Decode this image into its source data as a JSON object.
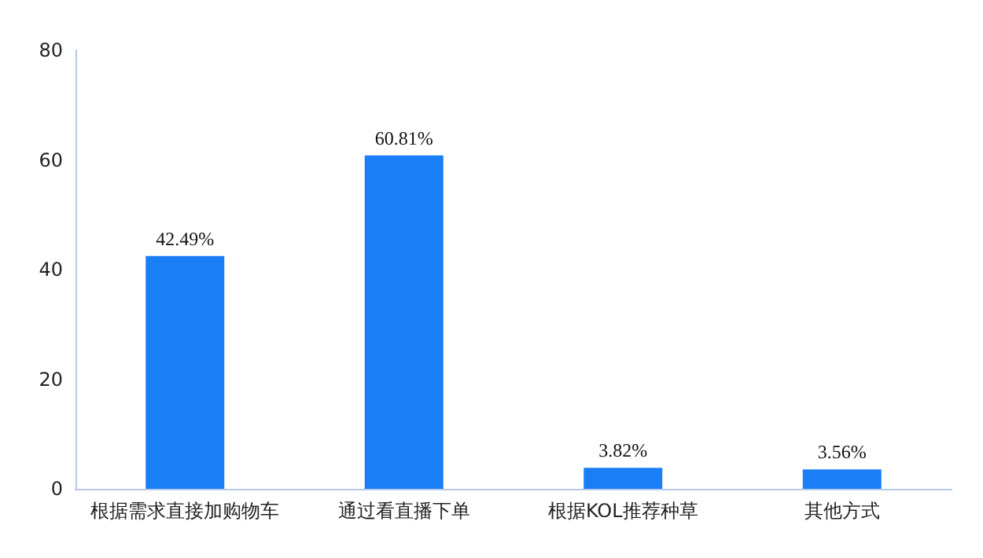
{
  "chart_data": {
    "type": "bar",
    "categories": [
      "根据需求直接加购物车",
      "通过看直播下单",
      "根据KOL推荐种草",
      "其他方式"
    ],
    "values": [
      42.49,
      60.81,
      3.82,
      3.56
    ],
    "value_labels": [
      "42.49%",
      "60.81%",
      "3.82%",
      "3.56%"
    ],
    "color": "#1a7ef7",
    "ylim": [
      0,
      80
    ],
    "yticks": [
      0,
      20,
      40,
      60,
      80
    ],
    "grid": false
  }
}
